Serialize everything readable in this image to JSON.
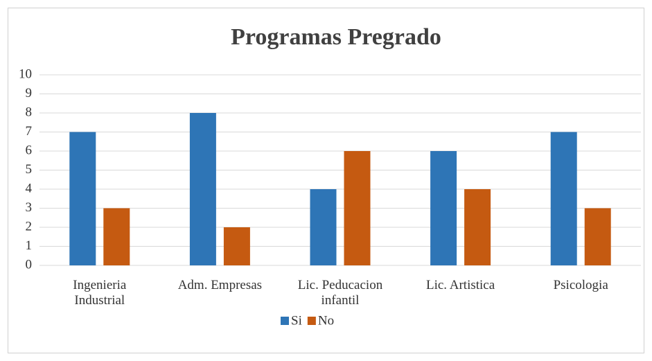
{
  "chart_data": {
    "type": "bar",
    "title": "Programas Pregrado",
    "categories": [
      "Ingenieria Industrial",
      "Adm. Empresas",
      "Lic. Peducacion infantil",
      "Lic. Artistica",
      "Psicologia"
    ],
    "series": [
      {
        "name": "Si",
        "color": "#2e75b6",
        "values": [
          7,
          8,
          4,
          6,
          7
        ]
      },
      {
        "name": "No",
        "color": "#c55a11",
        "values": [
          3,
          2,
          6,
          4,
          3
        ]
      }
    ],
    "ylim": [
      0,
      10
    ],
    "yticks": [
      0,
      1,
      2,
      3,
      4,
      5,
      6,
      7,
      8,
      9,
      10
    ],
    "grid": true,
    "legend": "bottom"
  }
}
